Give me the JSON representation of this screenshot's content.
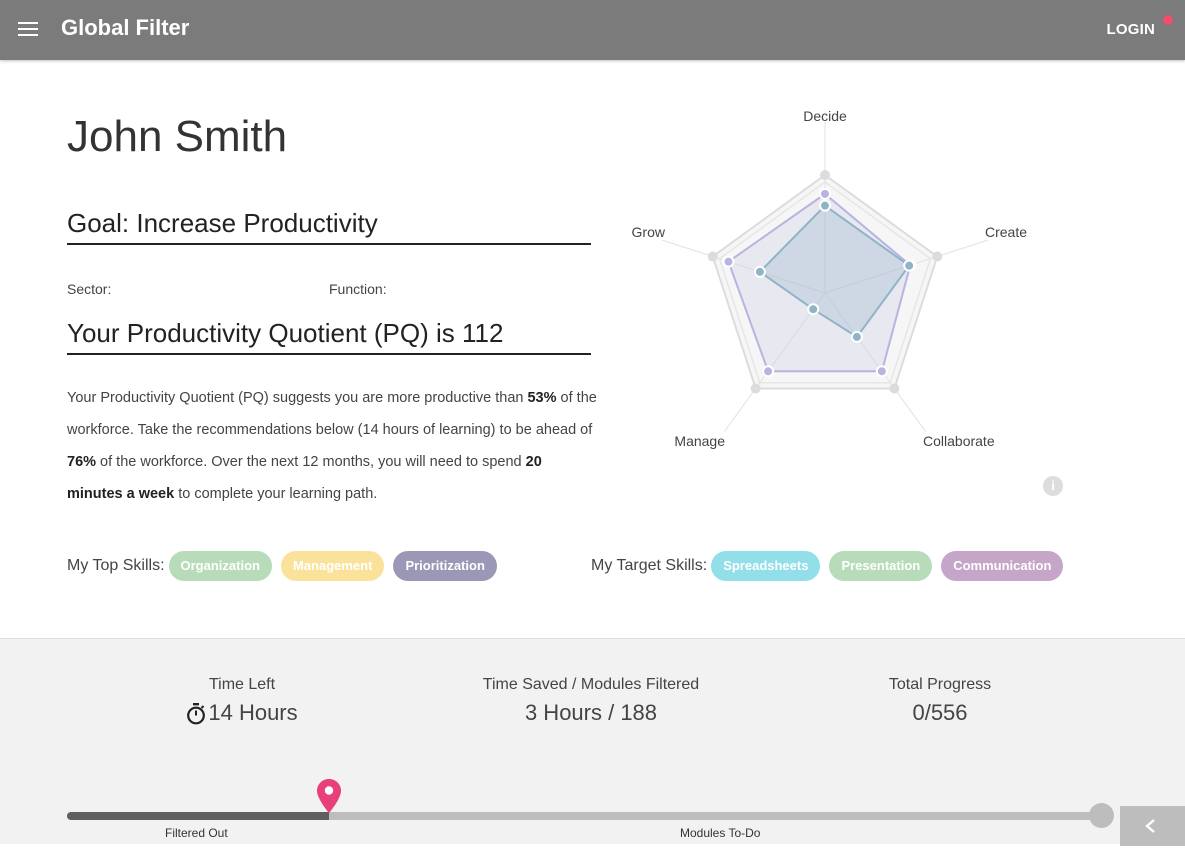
{
  "header": {
    "title": "Global Filter",
    "login_label": "LOGIN",
    "menu_icon": "hamburger-icon"
  },
  "profile": {
    "name": "John Smith",
    "goal": "Goal: Increase Productivity",
    "sector_label": "Sector:",
    "function_label": "Function:",
    "pq_heading": "Your Productivity Quotient (PQ) is 112",
    "desc": {
      "p1": "Your Productivity Quotient (PQ) suggests you are more productive than ",
      "b1": "53%",
      "p2": " of the workforce. Take the recommendations below (14 hours of learning) to be ahead of ",
      "b2": "76%",
      "p3": " of the workforce. Over the next 12 months, you will need to spend ",
      "b3": "20 minutes a week",
      "p4": " to complete your learning path."
    }
  },
  "top_skills": {
    "label": "My Top Skills:",
    "items": [
      {
        "label": "Organization",
        "color": "#b8dcb9"
      },
      {
        "label": "Management",
        "color": "#fbe29b"
      },
      {
        "label": "Prioritization",
        "color": "#9a98b6"
      }
    ]
  },
  "target_skills": {
    "label": "My Target Skills:",
    "items": [
      {
        "label": "Spreadsheets",
        "color": "#92dfea"
      },
      {
        "label": "Presentation",
        "color": "#b8dcb9"
      },
      {
        "label": "Communication",
        "color": "#c5a6c8"
      }
    ]
  },
  "chart_data": {
    "type": "radar",
    "axes": [
      "Decide",
      "Create",
      "Collaborate",
      "Manage",
      "Grow"
    ],
    "max": 1,
    "series": [
      {
        "values": [
          0.84,
          0.76,
          0.82,
          0.82,
          0.86
        ],
        "color": "#b7b4df"
      },
      {
        "values": [
          0.74,
          0.75,
          0.46,
          0.17,
          0.58
        ],
        "color": "#8fb4c6"
      }
    ],
    "outer_level": 1.0,
    "inner_level": 0.94,
    "info_icon": "info-icon"
  },
  "stats": {
    "time_left_label": "Time Left",
    "time_left_value": "14 Hours",
    "saved_label": "Time Saved / Modules Filtered",
    "saved_value": "3 Hours / 188",
    "progress_label": "Total Progress",
    "progress_value": "0/556"
  },
  "progress_track": {
    "filtered_fraction": 0.253,
    "filtered_label": "Filtered Out",
    "todo_label": "Modules To-Do",
    "pin_color": "#e8407a"
  }
}
